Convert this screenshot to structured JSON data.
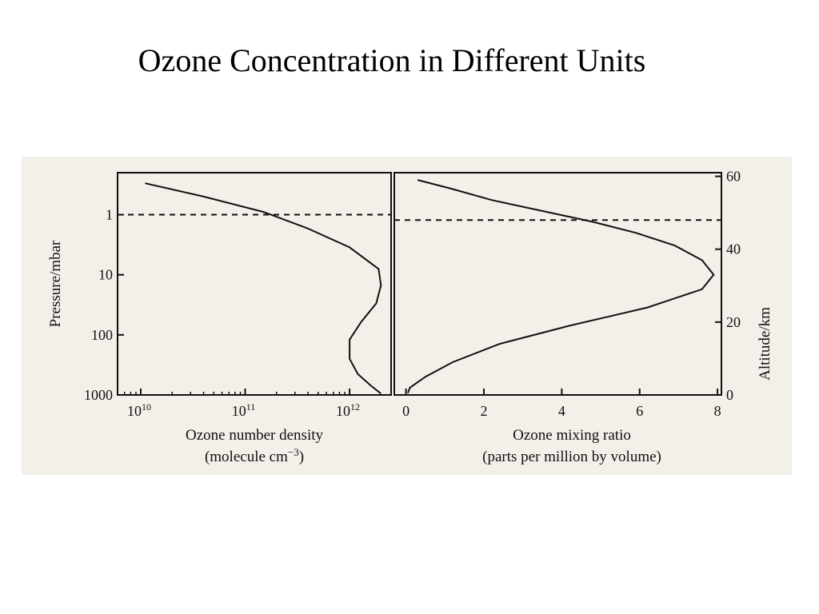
{
  "slide": {
    "title": "Ozone Concentration in Different Units"
  },
  "colors": {
    "panel_background": "#f3efe9",
    "ink": "#111111"
  },
  "chart_data": [
    {
      "type": "line",
      "name": "ozone-number-density-profile",
      "xlabel": "Ozone number density",
      "xlabel_line2": "(molecule cm",
      "xlabel_sup": "−3",
      "xlabel_tail": ")",
      "xscale": "log",
      "xlim": [
        6000000000.0,
        2500000000000.0
      ],
      "x_ticks": [
        {
          "value": 10000000000.0,
          "base": "10",
          "exp": "10"
        },
        {
          "value": 100000000000.0,
          "base": "10",
          "exp": "11"
        },
        {
          "value": 1000000000000.0,
          "base": "10",
          "exp": "12"
        }
      ],
      "ylabel": "Pressure/mbar",
      "yscale": "log-reversed",
      "ylim": [
        1000,
        0.2
      ],
      "y_ticks": [
        {
          "value": 1,
          "label": "1"
        },
        {
          "value": 10,
          "label": "10"
        },
        {
          "value": 100,
          "label": "100"
        },
        {
          "value": 1000,
          "label": "1000"
        }
      ],
      "reference_line_pressure": 1,
      "x": [
        11000000000.0,
        40000000000.0,
        150000000000.0,
        400000000000.0,
        1000000000000.0,
        1900000000000.0,
        2000000000000.0,
        1800000000000.0,
        1300000000000.0,
        1000000000000.0,
        1000000000000.0,
        1200000000000.0,
        1600000000000.0,
        2000000000000.0
      ],
      "y": [
        0.3,
        0.5,
        0.9,
        1.7,
        3.5,
        8,
        15,
        30,
        60,
        120,
        250,
        450,
        700,
        950
      ]
    },
    {
      "type": "line",
      "name": "ozone-mixing-ratio-profile",
      "xlabel": "Ozone mixing ratio",
      "xlabel_line2": "(parts per million by volume)",
      "xlim": [
        -0.3,
        8.1
      ],
      "x_ticks": [
        0,
        2,
        4,
        6,
        8
      ],
      "ylabel": "Altitude/km",
      "ylim": [
        0,
        61
      ],
      "y_ticks": [
        0,
        20,
        40,
        60
      ],
      "reference_line_altitude": 48,
      "x": [
        0.3,
        1.2,
        2.2,
        3.5,
        4.8,
        5.9,
        6.9,
        7.6,
        7.9,
        7.6,
        6.2,
        4.2,
        2.4,
        1.2,
        0.5,
        0.1,
        0.05
      ],
      "y": [
        59,
        56.5,
        53.5,
        50.5,
        47.5,
        44.5,
        41,
        37,
        33,
        29,
        24,
        19,
        14,
        9,
        5,
        2,
        0.5
      ]
    }
  ]
}
